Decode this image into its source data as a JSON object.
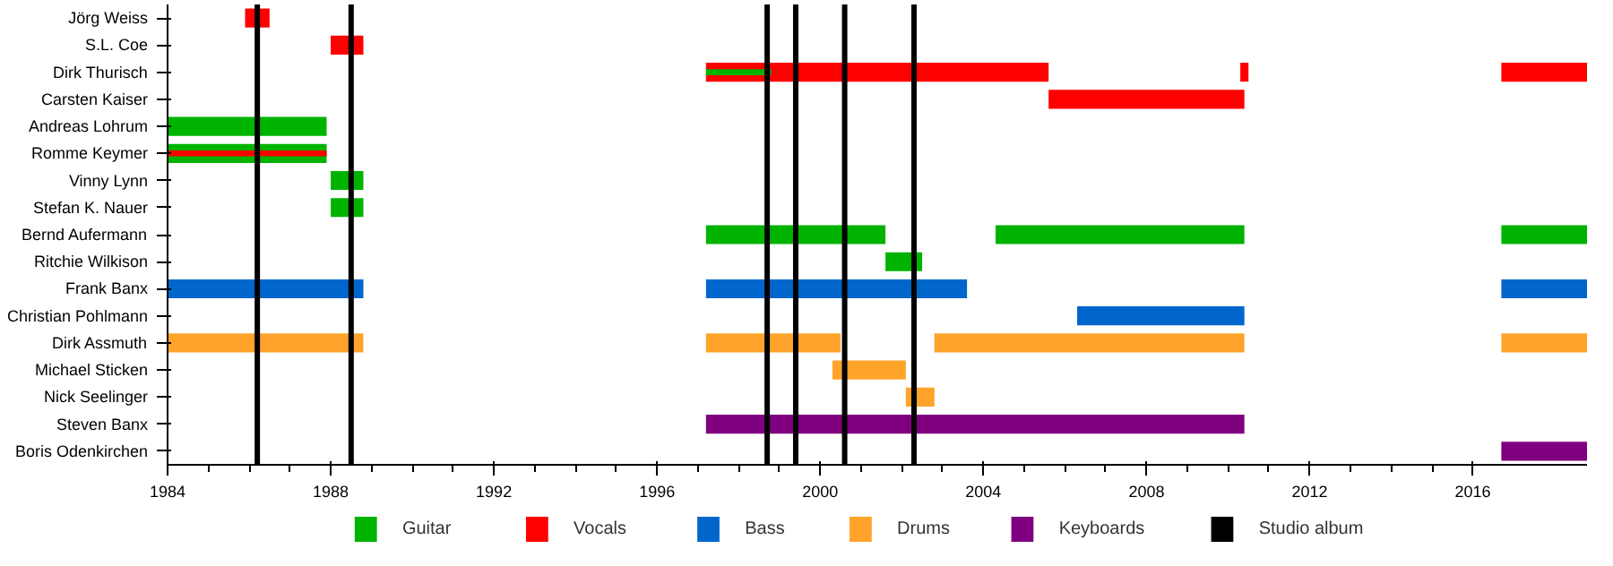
{
  "chart_data": {
    "type": "bar",
    "orientation": "horizontal",
    "categories": [
      "Jörg Weiss",
      "S.L. Coe",
      "Dirk Thurisch",
      "Carsten Kaiser",
      "Andreas Lohrum",
      "Romme Keymer",
      "Vinny Lynn",
      "Stefan K. Nauer",
      "Bernd Aufermann",
      "Ritchie Wilkison",
      "Frank Banx",
      "Christian Pohlmann",
      "Dirk Assmuth",
      "Michael Sticken",
      "Nick Seelinger",
      "Steven Banx",
      "Boris Odenkirchen"
    ],
    "series": [
      {
        "name": "Guitar",
        "color": "#00b300",
        "base": [
          null,
          null,
          null,
          null,
          1984,
          1984,
          1988,
          1988,
          1997.2,
          2001.6,
          null,
          null,
          null,
          null,
          null,
          null,
          null
        ],
        "values": [
          null,
          null,
          null,
          null,
          3.9,
          3.9,
          0.8,
          0.8,
          4.4,
          0.9,
          null,
          null,
          null,
          null,
          null,
          null,
          null
        ]
      },
      {
        "color": "#00b300",
        "base": [
          null,
          null,
          null,
          null,
          null,
          null,
          null,
          null,
          2004.3,
          null,
          null,
          null,
          null,
          null,
          null,
          null,
          null
        ],
        "values": [
          null,
          null,
          null,
          null,
          null,
          null,
          null,
          null,
          6.1,
          null,
          null,
          null,
          null,
          null,
          null,
          null,
          null
        ]
      },
      {
        "color": "#00b300",
        "base": [
          null,
          null,
          null,
          null,
          null,
          null,
          null,
          null,
          2016.7,
          null,
          null,
          null,
          null,
          null,
          null,
          null,
          null
        ],
        "values": [
          null,
          null,
          null,
          null,
          null,
          null,
          null,
          null,
          2.1,
          null,
          null,
          null,
          null,
          null,
          null,
          null,
          null
        ]
      },
      {
        "name": "Vocals",
        "color": "#ff0000",
        "base": [
          1985.9,
          1988,
          1997.2,
          2005.6,
          null,
          null,
          null,
          null,
          null,
          null,
          null,
          null,
          null,
          null,
          null,
          null,
          null
        ],
        "values": [
          0.6,
          0.8,
          8.4,
          4.8,
          null,
          null,
          null,
          null,
          null,
          null,
          null,
          null,
          null,
          null,
          null,
          null,
          null
        ]
      },
      {
        "color": "#ff0000",
        "base": [
          null,
          null,
          2010.3,
          null,
          null,
          null,
          null,
          null,
          null,
          null,
          null,
          null,
          null,
          null,
          null,
          null,
          null
        ],
        "values": [
          null,
          null,
          0.2,
          null,
          null,
          null,
          null,
          null,
          null,
          null,
          null,
          null,
          null,
          null,
          null,
          null,
          null
        ]
      },
      {
        "color": "#ff0000",
        "base": [
          null,
          null,
          2016.7,
          null,
          null,
          null,
          null,
          null,
          null,
          null,
          null,
          null,
          null,
          null,
          null,
          null,
          null
        ],
        "values": [
          null,
          null,
          2.1,
          null,
          null,
          null,
          null,
          null,
          null,
          null,
          null,
          null,
          null,
          null,
          null,
          null,
          null
        ]
      },
      {
        "color": "#ff0000",
        "base": [
          null,
          null,
          null,
          null,
          null,
          1984,
          null,
          null,
          null,
          null,
          null,
          null,
          null,
          null,
          null,
          null,
          null
        ],
        "values": [
          null,
          null,
          null,
          null,
          null,
          3.9,
          null,
          null,
          null,
          null,
          null,
          null,
          null,
          null,
          null,
          null,
          null
        ]
      },
      {
        "color": "#00b300",
        "base": [
          null,
          null,
          1997.2,
          null,
          null,
          null,
          null,
          null,
          null,
          null,
          null,
          null,
          null,
          null,
          null,
          null,
          null
        ],
        "values": [
          null,
          null,
          1.6,
          null,
          null,
          null,
          null,
          null,
          null,
          null,
          null,
          null,
          null,
          null,
          null,
          null,
          null
        ]
      },
      {
        "name": "Bass",
        "color": "#0066cc",
        "base": [
          null,
          null,
          null,
          null,
          null,
          null,
          null,
          null,
          null,
          null,
          1984,
          2006.3,
          null,
          null,
          null,
          null,
          null
        ],
        "values": [
          null,
          null,
          null,
          null,
          null,
          null,
          null,
          null,
          null,
          null,
          4.8,
          4.1,
          null,
          null,
          null,
          null,
          null
        ]
      },
      {
        "color": "#0066cc",
        "base": [
          null,
          null,
          null,
          null,
          null,
          null,
          null,
          null,
          null,
          null,
          1997.2,
          null,
          null,
          null,
          null,
          null,
          null
        ],
        "values": [
          null,
          null,
          null,
          null,
          null,
          null,
          null,
          null,
          null,
          null,
          6.4,
          null,
          null,
          null,
          null,
          null,
          null
        ]
      },
      {
        "color": "#0066cc",
        "base": [
          null,
          null,
          null,
          null,
          null,
          null,
          null,
          null,
          null,
          null,
          2016.7,
          null,
          null,
          null,
          null,
          null,
          null
        ],
        "values": [
          null,
          null,
          null,
          null,
          null,
          null,
          null,
          null,
          null,
          null,
          2.1,
          null,
          null,
          null,
          null,
          null,
          null
        ]
      },
      {
        "name": "Drums",
        "color": "#ffa32b",
        "base": [
          null,
          null,
          null,
          null,
          null,
          null,
          null,
          null,
          null,
          null,
          null,
          null,
          1984,
          2000.3,
          2002.1,
          null,
          null
        ],
        "values": [
          null,
          null,
          null,
          null,
          null,
          null,
          null,
          null,
          null,
          null,
          null,
          null,
          4.8,
          1.8,
          0.7,
          null,
          null
        ]
      },
      {
        "color": "#ffa32b",
        "base": [
          null,
          null,
          null,
          null,
          null,
          null,
          null,
          null,
          null,
          null,
          null,
          null,
          1997.2,
          null,
          null,
          null,
          null
        ],
        "values": [
          null,
          null,
          null,
          null,
          null,
          null,
          null,
          null,
          null,
          null,
          null,
          null,
          3.3,
          null,
          null,
          null,
          null
        ]
      },
      {
        "color": "#ffa32b",
        "base": [
          null,
          null,
          null,
          null,
          null,
          null,
          null,
          null,
          null,
          null,
          null,
          null,
          2002.8,
          null,
          null,
          null,
          null
        ],
        "values": [
          null,
          null,
          null,
          null,
          null,
          null,
          null,
          null,
          null,
          null,
          null,
          null,
          7.6,
          null,
          null,
          null,
          null
        ]
      },
      {
        "color": "#ffa32b",
        "base": [
          null,
          null,
          null,
          null,
          null,
          null,
          null,
          null,
          null,
          null,
          null,
          null,
          2016.7,
          null,
          null,
          null,
          null
        ],
        "values": [
          null,
          null,
          null,
          null,
          null,
          null,
          null,
          null,
          null,
          null,
          null,
          null,
          2.1,
          null,
          null,
          null,
          null
        ]
      },
      {
        "name": "Keyboards",
        "color": "#7f007f",
        "base": [
          null,
          null,
          null,
          null,
          null,
          null,
          null,
          null,
          null,
          null,
          null,
          null,
          null,
          null,
          null,
          1997.2,
          2016.7
        ],
        "values": [
          null,
          null,
          null,
          null,
          null,
          null,
          null,
          null,
          null,
          null,
          null,
          null,
          null,
          null,
          null,
          13.2,
          2.1
        ]
      }
    ],
    "ref_lines": [
      {
        "axis": "x",
        "value": 1986.2,
        "label": "Studio album",
        "color": "#000000"
      },
      {
        "axis": "x",
        "value": 1988.5,
        "color": "#000000"
      },
      {
        "axis": "x",
        "value": 1998.7,
        "color": "#000000"
      },
      {
        "axis": "x",
        "value": 1999.4,
        "color": "#000000"
      },
      {
        "axis": "x",
        "value": 2000.6,
        "color": "#000000"
      },
      {
        "axis": "x",
        "value": 2002.3,
        "color": "#000000"
      }
    ],
    "xlim": [
      1984,
      2018.8
    ],
    "xticks": [
      1984,
      1988,
      1992,
      1996,
      2000,
      2004,
      2008,
      2012,
      2016
    ],
    "grid": false,
    "legend": "bottom"
  }
}
